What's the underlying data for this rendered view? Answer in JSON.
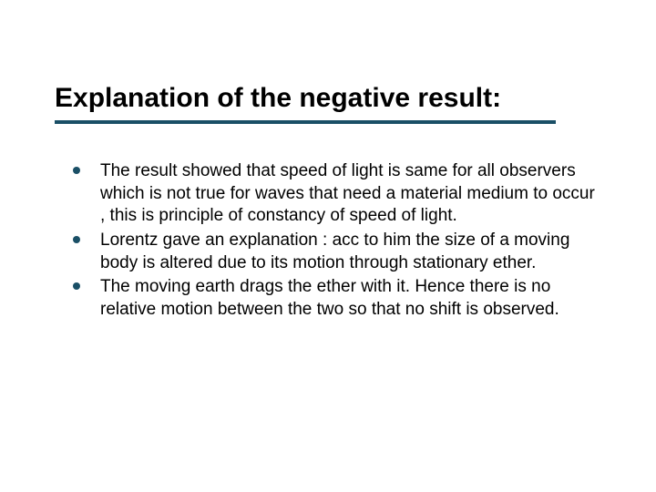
{
  "colors": {
    "title_text": "#000000",
    "body_text": "#000000",
    "accent": "#1a4f66",
    "background": "#ffffff"
  },
  "typography": {
    "title_fontsize": 30,
    "title_weight": "bold",
    "body_fontsize": 19,
    "font_family": "Arial"
  },
  "layout": {
    "slide_width": 720,
    "slide_height": 540,
    "underline_width": 550,
    "underline_height": 4,
    "bullet_dot_size": 8,
    "bullet_indent": 30
  },
  "title": "Explanation of the negative result:",
  "bullets": [
    "The result showed that speed of light is same for all observers which is not true for waves that need a material medium to occur , this is principle of constancy of speed of light.",
    "Lorentz gave an explanation : acc to him the size of a moving body is altered due to its motion through stationary ether.",
    "The moving earth drags the ether with it. Hence there is no relative motion between the two so that no shift is observed."
  ]
}
